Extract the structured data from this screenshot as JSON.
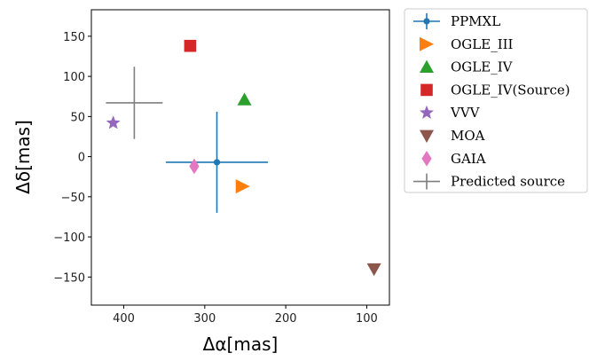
{
  "chart_data": {
    "type": "scatter",
    "title": "",
    "xlabel": "Δα[mas]",
    "ylabel": "Δδ[mas]",
    "x_reversed": true,
    "xlim": [
      440,
      72
    ],
    "ylim": [
      -185,
      183
    ],
    "x_ticks": [
      400,
      300,
      200,
      100
    ],
    "y_ticks": [
      150,
      100,
      50,
      0,
      -50,
      -100,
      -150
    ],
    "grid": false,
    "legend_position": "outside-right",
    "series": [
      {
        "name": "PPMXL",
        "x": 285,
        "y": -7,
        "x_err": 63,
        "y_err": 63,
        "marker": "point",
        "color": "#1f77b4"
      },
      {
        "name": "OGLE_III",
        "x": 253,
        "y": -37,
        "marker": "triangle-right",
        "color": "#ff7f0e"
      },
      {
        "name": "OGLE_IV",
        "x": 251,
        "y": 71,
        "marker": "triangle-up",
        "color": "#2ca02c"
      },
      {
        "name": "OGLE_IV(Source)",
        "x": 318,
        "y": 138,
        "marker": "square",
        "color": "#d62728"
      },
      {
        "name": "VVV",
        "x": 413,
        "y": 42,
        "marker": "star",
        "color": "#9467bd"
      },
      {
        "name": "MOA",
        "x": 91,
        "y": -140,
        "marker": "triangle-down",
        "color": "#8c564b"
      },
      {
        "name": "GAIA",
        "x": 313,
        "y": -12,
        "marker": "diamond",
        "color": "#e377c2"
      },
      {
        "name": "Predicted source",
        "x": 387,
        "y": 67,
        "x_err": 35,
        "y_err": 45,
        "marker": "cross",
        "color": "#7f7f7f"
      }
    ]
  }
}
